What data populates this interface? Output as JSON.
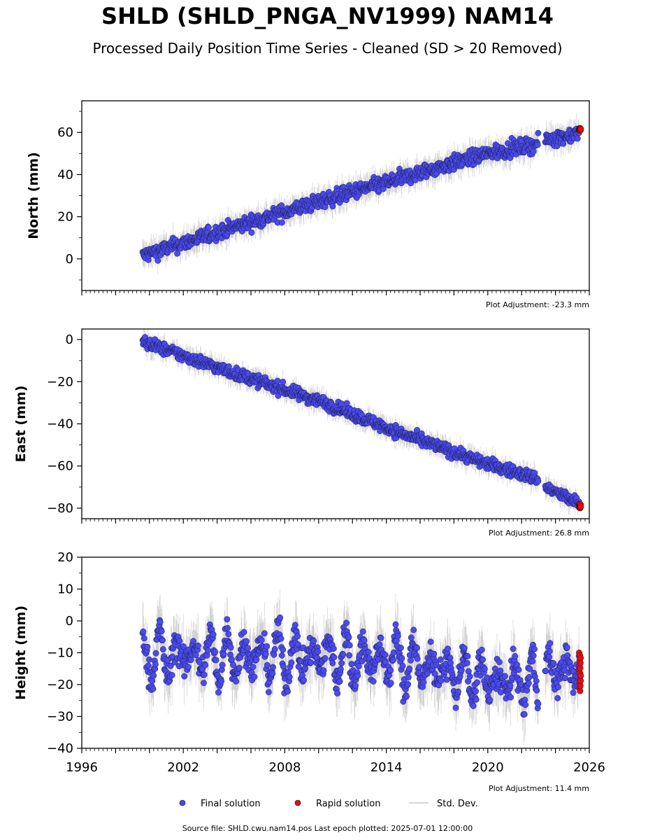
{
  "title": "SHLD (SHLD_PNGA_NV1999) NAM14",
  "subtitle": "Processed Daily Position Time Series - Cleaned (SD > 20 Removed)",
  "source": "Source file: SHLD.cwu.nam14.pos  Last epoch plotted: 2025-07-01 12:00:00",
  "colors": {
    "final": "#4a4af0",
    "rapid": "#e01010",
    "stddev": "#9a9a9a"
  },
  "legend": {
    "final_label": "Final solution",
    "rapid_label": "Rapid solution",
    "std_label": "Std. Dev."
  },
  "chart_data": [
    {
      "type": "scatter",
      "ylabel": "North (mm)",
      "adjustment": "Plot Adjustment: -23.3 mm",
      "xlim": [
        1996,
        2026
      ],
      "ylim": [
        -15,
        75
      ],
      "yticks": [
        0,
        20,
        40,
        60
      ],
      "x_gaps": [
        [
          2023.0,
          2023.4
        ]
      ],
      "series": [
        {
          "name": "Final solution",
          "x_range": [
            1999.6,
            2025.4
          ],
          "trend_points": [
            [
              1999.6,
              1.5
            ],
            [
              2005,
              15
            ],
            [
              2010,
              27
            ],
            [
              2015,
              38.5
            ],
            [
              2018,
              45.5
            ],
            [
              2020,
              50
            ],
            [
              2022.9,
              54.5
            ],
            [
              2023.4,
              56.5
            ],
            [
              2025.4,
              59.5
            ]
          ],
          "scatter_mm": 3.2
        },
        {
          "name": "Rapid solution",
          "x_range": [
            2025.4,
            2025.5
          ],
          "values": [
            61,
            62
          ]
        }
      ]
    },
    {
      "type": "scatter",
      "ylabel": "East (mm)",
      "adjustment": "Plot Adjustment: 26.8 mm",
      "xlim": [
        1996,
        2026
      ],
      "ylim": [
        -85,
        5
      ],
      "yticks": [
        0,
        -20,
        -40,
        -60,
        -80
      ],
      "x_gaps": [
        [
          2023.0,
          2023.4
        ]
      ],
      "series": [
        {
          "name": "Final solution",
          "x_range": [
            1999.6,
            2025.4
          ],
          "trend_points": [
            [
              1999.6,
              -1
            ],
            [
              2005,
              -16
            ],
            [
              2010,
              -29
            ],
            [
              2015,
              -45
            ],
            [
              2020,
              -59
            ],
            [
              2022.9,
              -66
            ],
            [
              2023.4,
              -70
            ],
            [
              2025.4,
              -78
            ]
          ],
          "scatter_mm": 2.6
        },
        {
          "name": "Rapid solution",
          "x_range": [
            2025.4,
            2025.5
          ],
          "values": [
            -78,
            -80
          ]
        }
      ]
    },
    {
      "type": "scatter",
      "ylabel": "Height (mm)",
      "adjustment": "Plot Adjustment: 11.4 mm",
      "xlim": [
        1996,
        2026
      ],
      "ylim": [
        -40,
        20
      ],
      "yticks": [
        -40,
        -30,
        -20,
        -10,
        0,
        10,
        20
      ],
      "xticks": [
        1996,
        2002,
        2008,
        2014,
        2020,
        2026
      ],
      "x_gaps": [
        [
          2023.0,
          2023.4
        ]
      ],
      "series": [
        {
          "name": "Final solution",
          "x_range": [
            1999.6,
            2025.4
          ],
          "trend_points": [
            [
              1999.6,
              -11
            ],
            [
              2008,
              -11
            ],
            [
              2014,
              -12
            ],
            [
              2017,
              -15
            ],
            [
              2020,
              -19
            ],
            [
              2022.9,
              -19
            ],
            [
              2023.4,
              -16
            ],
            [
              2025.4,
              -15
            ]
          ],
          "seasonal_amplitude_mm": 7,
          "scatter_mm": 4.5
        },
        {
          "name": "Rapid solution",
          "x_range": [
            2025.4,
            2025.5
          ],
          "values": [
            -10,
            -22
          ]
        }
      ]
    }
  ]
}
